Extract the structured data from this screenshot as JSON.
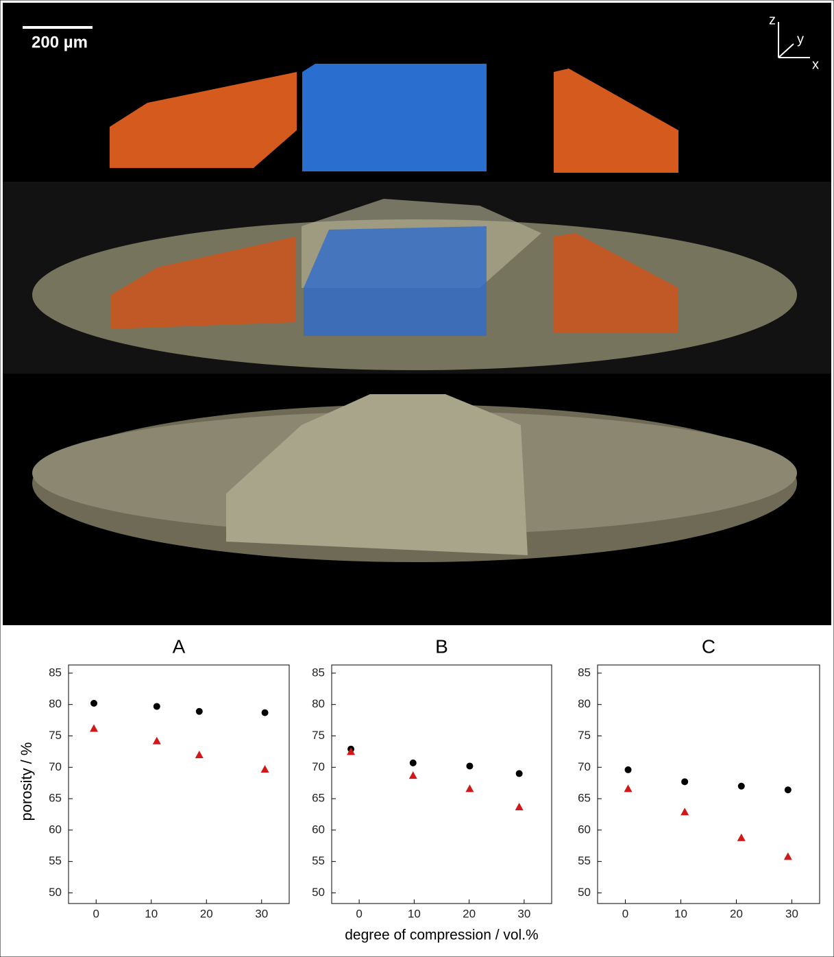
{
  "image": {
    "scale_bar": "200 µm",
    "axes": {
      "z": "z",
      "y": "y",
      "x": "x"
    }
  },
  "chart_data": [
    {
      "type": "scatter",
      "title": "A",
      "ylabel": "porosity / %",
      "x": [
        -0.4,
        11,
        18.7,
        30.6
      ],
      "series": [
        {
          "color": "#000000",
          "marker": "circle",
          "values": [
            80.2,
            79.7,
            78.9,
            78.7
          ]
        },
        {
          "color": "#d01818",
          "marker": "triangle",
          "values": [
            76.2,
            74.2,
            72.0,
            69.7
          ]
        }
      ],
      "xlim": [
        -5,
        35
      ],
      "ylim": [
        48.3,
        86.3
      ],
      "xticks": [
        0,
        10,
        20,
        30
      ],
      "yticks": [
        50,
        55,
        60,
        65,
        70,
        75,
        80,
        85
      ]
    },
    {
      "type": "scatter",
      "title": "B",
      "xlabel": "degree of compression / vol.%",
      "x": [
        -1.5,
        9.8,
        20.1,
        29.1
      ],
      "series": [
        {
          "color": "#000000",
          "marker": "circle",
          "values": [
            72.9,
            70.7,
            70.2,
            69.0
          ]
        },
        {
          "color": "#d01818",
          "marker": "triangle",
          "values": [
            72.5,
            68.7,
            66.6,
            63.7
          ]
        }
      ],
      "xlim": [
        -5,
        35
      ],
      "ylim": [
        48.3,
        86.3
      ],
      "xticks": [
        0,
        10,
        20,
        30
      ],
      "yticks": [
        50,
        55,
        60,
        65,
        70,
        75,
        80,
        85
      ]
    },
    {
      "type": "scatter",
      "title": "C",
      "x": [
        0.5,
        10.7,
        20.9,
        29.3
      ],
      "series": [
        {
          "color": "#000000",
          "marker": "circle",
          "values": [
            69.6,
            67.7,
            67.0,
            66.4
          ]
        },
        {
          "color": "#d01818",
          "marker": "triangle",
          "values": [
            66.6,
            62.9,
            58.8,
            55.8
          ]
        }
      ],
      "xlim": [
        -5,
        35
      ],
      "ylim": [
        48.3,
        86.3
      ],
      "xticks": [
        0,
        10,
        20,
        30
      ],
      "yticks": [
        50,
        55,
        60,
        65,
        70,
        75,
        80,
        85
      ]
    }
  ]
}
